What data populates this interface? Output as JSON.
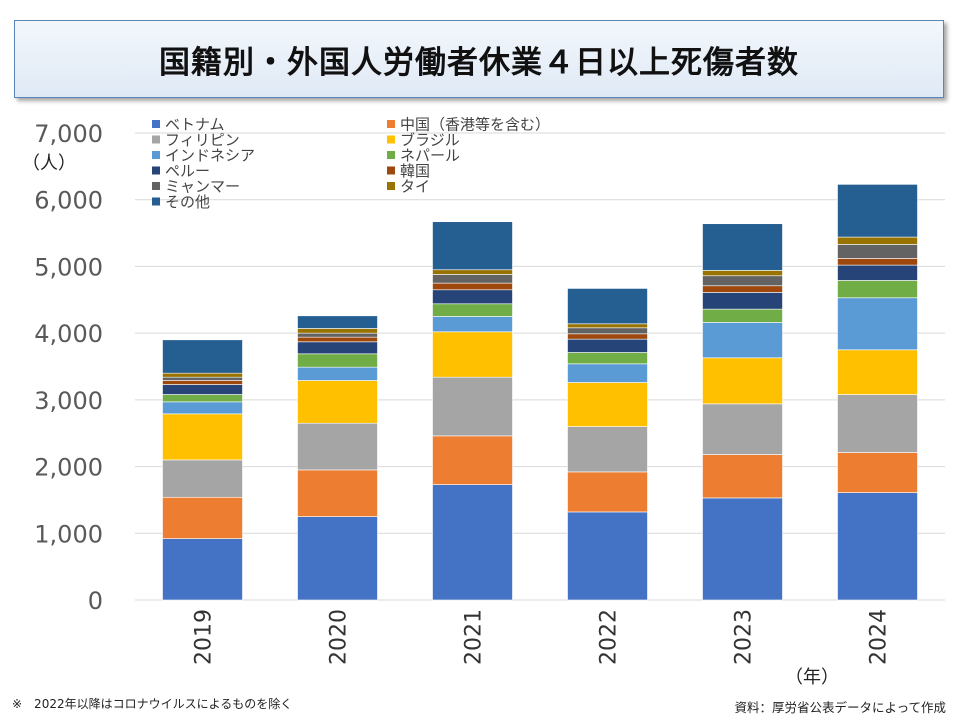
{
  "title": "国籍別・外国人労働者休業４日以上死傷者数",
  "footnote": "※　2022年以降はコロナウイルスによるものを除く",
  "source": "資料：厚労省公表データによって作成",
  "chart_data": {
    "type": "bar",
    "stacked": true,
    "title": "国籍別・外国人労働者休業４日以上死傷者数",
    "ylabel": "（人）",
    "xlabel": "（年）",
    "ylim": [
      0,
      7000
    ],
    "yticks": [
      0,
      1000,
      2000,
      3000,
      4000,
      5000,
      6000,
      7000
    ],
    "ytick_labels": [
      "0",
      "1,000",
      "2,000",
      "3,000",
      "4,000",
      "5,000",
      "6,000",
      "7,000"
    ],
    "categories": [
      "2019",
      "2020",
      "2021",
      "2022",
      "2023",
      "2024"
    ],
    "legend_position": "top-left",
    "series": [
      {
        "name": "ベトナム",
        "color": "#4472c4",
        "values": [
          920,
          1250,
          1730,
          1320,
          1530,
          1610
        ]
      },
      {
        "name": "中国（香港等を含む）",
        "color": "#ed7d31",
        "values": [
          620,
          700,
          730,
          600,
          650,
          600
        ]
      },
      {
        "name": "フィリピン",
        "color": "#a5a5a5",
        "values": [
          560,
          700,
          880,
          680,
          760,
          870
        ]
      },
      {
        "name": "ブラジル",
        "color": "#ffc000",
        "values": [
          690,
          640,
          680,
          660,
          690,
          670
        ]
      },
      {
        "name": "インドネシア",
        "color": "#5b9bd5",
        "values": [
          180,
          200,
          230,
          280,
          530,
          780
        ]
      },
      {
        "name": "ネパール",
        "color": "#70ad47",
        "values": [
          110,
          200,
          190,
          170,
          200,
          260
        ]
      },
      {
        "name": "ペルー",
        "color": "#264478",
        "values": [
          150,
          180,
          210,
          200,
          250,
          230
        ]
      },
      {
        "name": "韓国",
        "color": "#9e480e",
        "values": [
          60,
          70,
          100,
          80,
          100,
          100
        ]
      },
      {
        "name": "ミャンマー",
        "color": "#636363",
        "values": [
          50,
          60,
          130,
          90,
          150,
          210
        ]
      },
      {
        "name": "タイ",
        "color": "#997300",
        "values": [
          60,
          70,
          70,
          60,
          80,
          110
        ]
      },
      {
        "name": "その他",
        "color": "#255e91",
        "values": [
          500,
          190,
          720,
          530,
          700,
          790
        ]
      }
    ]
  }
}
